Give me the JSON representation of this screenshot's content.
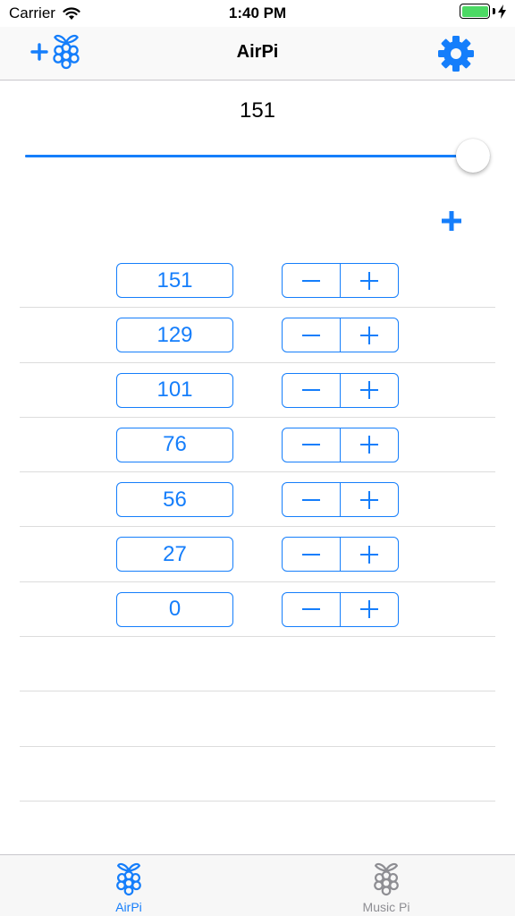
{
  "status_bar": {
    "carrier": "Carrier",
    "time": "1:40 PM"
  },
  "nav": {
    "title": "AirPi",
    "left_icon": "plus-raspberry-icon",
    "right_icon": "gear-icon"
  },
  "main": {
    "value": "151",
    "slider": {
      "min": 0,
      "max": 151,
      "value": 151
    }
  },
  "rows": [
    {
      "value": "151"
    },
    {
      "value": "129"
    },
    {
      "value": "101"
    },
    {
      "value": "76"
    },
    {
      "value": "56"
    },
    {
      "value": "27"
    },
    {
      "value": "0"
    }
  ],
  "empty_rows": 4,
  "tabs": [
    {
      "label": "AirPi",
      "active": true
    },
    {
      "label": "Music Pi",
      "active": false
    }
  ],
  "colors": {
    "accent": "#157efb",
    "inactive": "#8e8e93",
    "battery": "#4cd964"
  }
}
